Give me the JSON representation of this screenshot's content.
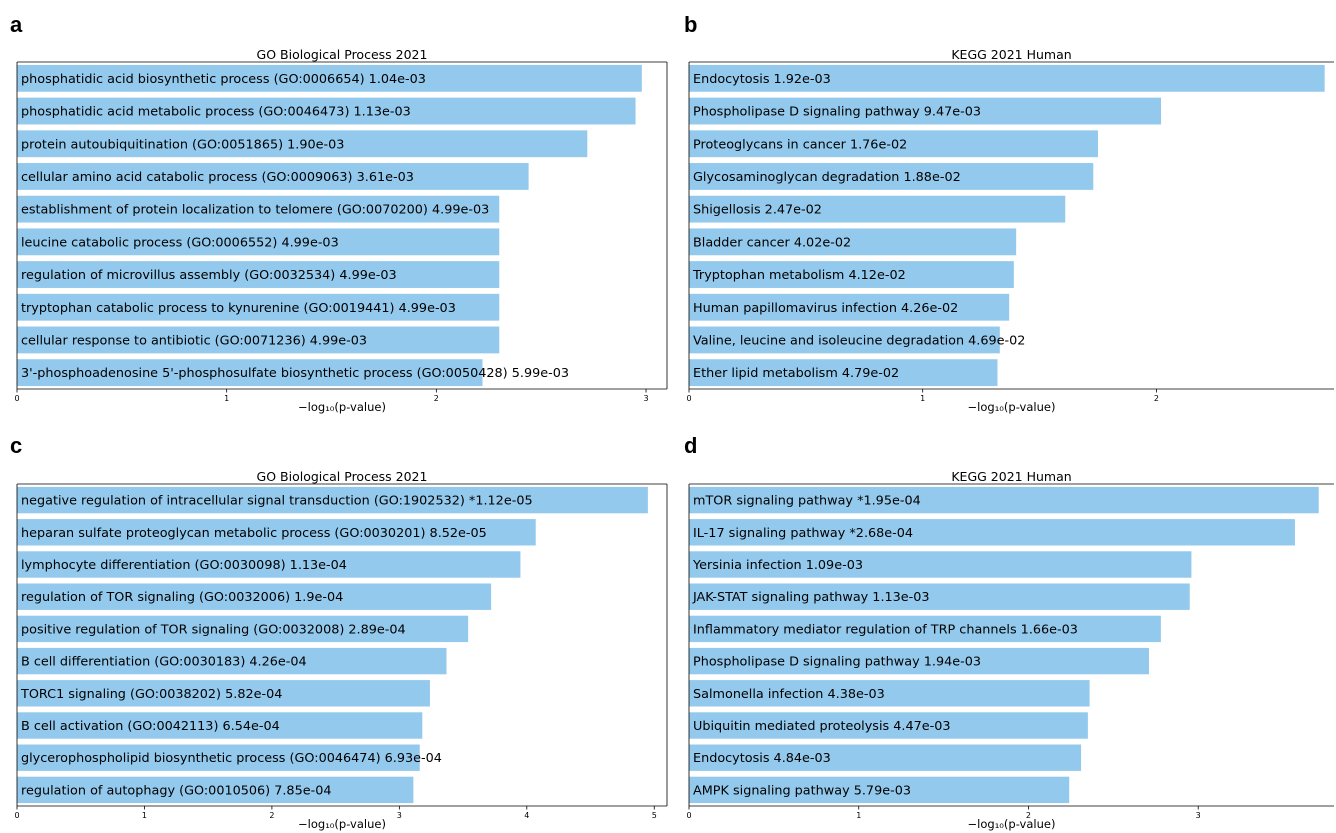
{
  "panels": [
    {
      "letter": "a"
    },
    {
      "letter": "b"
    },
    {
      "letter": "c"
    },
    {
      "letter": "d"
    }
  ],
  "colors": {
    "bar": "#93c9ed",
    "frame": "#000000"
  },
  "chart_data": [
    {
      "type": "bar",
      "orientation": "horizontal",
      "title": "GO Biological Process 2021",
      "xlabel": "−log₁₀(p-value)",
      "xlim": [
        0,
        3.1
      ],
      "xticks": [
        0,
        1,
        2,
        3
      ],
      "grid": false,
      "categories": [
        "phosphatidic acid biosynthetic process (GO:0006654)",
        "phosphatidic acid metabolic process (GO:0046473)",
        "protein autoubiquitination (GO:0051865)",
        "cellular amino acid catabolic process (GO:0009063)",
        "establishment of protein localization to telomere (GO:0070200)",
        "leucine catabolic process (GO:0006552)",
        "regulation of microvillus assembly (GO:0032534)",
        "tryptophan catabolic process to kynurenine (GO:0019441)",
        "cellular response to antibiotic (GO:0071236)",
        "3'-phosphoadenosine 5'-phosphosulfate biosynthetic process (GO:0050428)"
      ],
      "pvalue_labels": [
        "1.04e-03",
        "1.13e-03",
        "1.90e-03",
        "3.61e-03",
        "4.99e-03",
        "4.99e-03",
        "4.99e-03",
        "4.99e-03",
        "4.99e-03",
        "5.99e-03"
      ],
      "values": [
        2.98,
        2.95,
        2.72,
        2.44,
        2.3,
        2.3,
        2.3,
        2.3,
        2.3,
        2.22
      ]
    },
    {
      "type": "bar",
      "orientation": "horizontal",
      "title": "KEGG 2021 Human",
      "xlabel": "−log₁₀(p-value)",
      "xlim": [
        0,
        2.76
      ],
      "xticks": [
        0,
        1,
        2
      ],
      "grid": false,
      "categories": [
        "Endocytosis",
        "Phospholipase D signaling pathway",
        "Proteoglycans in cancer",
        "Glycosaminoglycan degradation",
        "Shigellosis",
        "Bladder cancer",
        "Tryptophan metabolism",
        "Human papillomavirus infection",
        "Valine, leucine and isoleucine degradation",
        "Ether lipid metabolism"
      ],
      "pvalue_labels": [
        "1.92e-03",
        "9.47e-03",
        "1.76e-02",
        "1.88e-02",
        "2.47e-02",
        "4.02e-02",
        "4.12e-02",
        "4.26e-02",
        "4.69e-02",
        "4.79e-02"
      ],
      "values": [
        2.72,
        2.02,
        1.75,
        1.73,
        1.61,
        1.4,
        1.39,
        1.37,
        1.33,
        1.32
      ]
    },
    {
      "type": "bar",
      "orientation": "horizontal",
      "title": "GO Biological Process 2021",
      "xlabel": "−log₁₀(p-value)",
      "xlim": [
        0,
        5.1
      ],
      "xticks": [
        0,
        1,
        2,
        3,
        4,
        5
      ],
      "grid": false,
      "categories": [
        "negative regulation of intracellular signal transduction (GO:1902532)",
        "heparan sulfate proteoglycan metabolic process (GO:0030201)",
        "lymphocyte differentiation (GO:0030098)",
        "regulation of TOR signaling (GO:0032006)",
        "positive regulation of TOR signaling (GO:0032008)",
        "B cell differentiation (GO:0030183)",
        "TORC1 signaling (GO:0038202)",
        "B cell activation (GO:0042113)",
        "glycerophospholipid biosynthetic process (GO:0046474)",
        "regulation of autophagy (GO:0010506)"
      ],
      "pvalue_labels": [
        "*1.12e-05",
        "8.52e-05",
        "1.13e-04",
        "1.9e-04",
        "2.89e-04",
        "4.26e-04",
        "5.82e-04",
        "6.54e-04",
        "6.93e-04",
        "7.85e-04"
      ],
      "values": [
        4.95,
        4.07,
        3.95,
        3.72,
        3.54,
        3.37,
        3.24,
        3.18,
        3.16,
        3.11
      ]
    },
    {
      "type": "bar",
      "orientation": "horizontal",
      "title": "KEGG 2021 Human",
      "xlabel": "−log₁₀(p-value)",
      "xlim": [
        0,
        3.8
      ],
      "xticks": [
        0,
        1,
        2,
        3
      ],
      "grid": false,
      "categories": [
        "mTOR signaling pathway",
        "IL-17 signaling pathway",
        "Yersinia infection",
        "JAK-STAT signaling pathway",
        "Inflammatory mediator regulation of TRP channels",
        "Phospholipase D signaling pathway",
        "Salmonella infection",
        "Ubiquitin mediated proteolysis",
        "Endocytosis",
        "AMPK signaling pathway"
      ],
      "pvalue_labels": [
        "*1.95e-04",
        "*2.68e-04",
        "1.09e-03",
        "1.13e-03",
        "1.66e-03",
        "1.94e-03",
        "4.38e-03",
        "4.47e-03",
        "4.84e-03",
        "5.79e-03"
      ],
      "values": [
        3.71,
        3.57,
        2.96,
        2.95,
        2.78,
        2.71,
        2.36,
        2.35,
        2.31,
        2.24
      ]
    }
  ]
}
